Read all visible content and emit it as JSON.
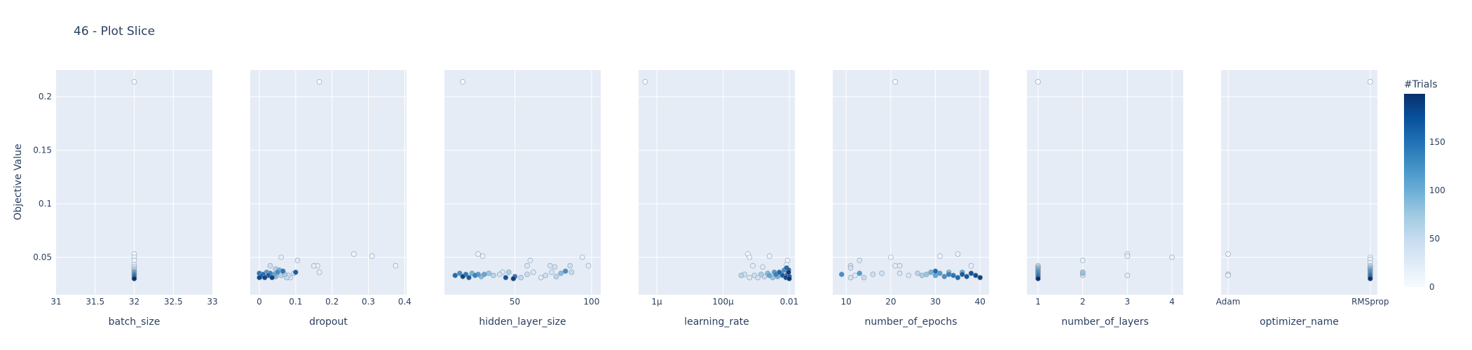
{
  "chart_data": {
    "type": "scatter",
    "title": "46 - Plot Slice",
    "ylabel": "Objective Value",
    "ylim": [
      0.015,
      0.225
    ],
    "yticks": [
      0.05,
      0.1,
      0.15,
      0.2
    ],
    "ytick_labels": [
      "0.05",
      "0.1",
      "0.15",
      "0.2"
    ],
    "colorbar": {
      "title": "#Trials",
      "range": [
        0,
        200
      ],
      "ticks": [
        0,
        50,
        100,
        150
      ],
      "tick_labels": [
        "0",
        "50",
        "100",
        "150"
      ]
    },
    "colorscale": [
      "#f7fbff",
      "#deebf7",
      "#c6dbef",
      "#9ecae1",
      "#6baed6",
      "#4292c6",
      "#2171b5",
      "#08519c",
      "#08306b"
    ],
    "panels": [
      {
        "name": "batch_size",
        "xlabel": "batch_size",
        "scale": "linear",
        "xlim": [
          31,
          33
        ],
        "ticks": [
          31,
          31.5,
          32,
          32.5,
          33
        ],
        "tick_labels": [
          "31",
          "31.5",
          "32",
          "32.5",
          "33"
        ],
        "points": [
          [
            32,
            0.214,
            1
          ],
          [
            32,
            0.053,
            3
          ],
          [
            32,
            0.05,
            5
          ],
          [
            32,
            0.047,
            8
          ],
          [
            32,
            0.043,
            12
          ],
          [
            32,
            0.041,
            30
          ],
          [
            32,
            0.039,
            55
          ],
          [
            32,
            0.037,
            80
          ],
          [
            32,
            0.036,
            100
          ],
          [
            32,
            0.035,
            120
          ],
          [
            32,
            0.034,
            140
          ],
          [
            32,
            0.033,
            160
          ],
          [
            32,
            0.032,
            175
          ],
          [
            32,
            0.031,
            190
          ],
          [
            32,
            0.03,
            199
          ]
        ]
      },
      {
        "name": "dropout",
        "xlabel": "dropout",
        "scale": "linear",
        "xlim": [
          -0.025,
          0.405
        ],
        "ticks": [
          0,
          0.1,
          0.2,
          0.3,
          0.4
        ],
        "tick_labels": [
          "0",
          "0.1",
          "0.2",
          "0.3",
          "0.4"
        ],
        "points": [
          [
            0.165,
            0.214,
            1
          ],
          [
            0.26,
            0.053,
            8
          ],
          [
            0.31,
            0.051,
            10
          ],
          [
            0.375,
            0.042,
            12
          ],
          [
            0.06,
            0.05,
            20
          ],
          [
            0.105,
            0.047,
            25
          ],
          [
            0.16,
            0.042,
            15
          ],
          [
            0.165,
            0.036,
            18
          ],
          [
            0.15,
            0.042,
            22
          ],
          [
            0.0,
            0.035,
            150
          ],
          [
            0.005,
            0.032,
            180
          ],
          [
            0.01,
            0.034,
            160
          ],
          [
            0.015,
            0.031,
            190
          ],
          [
            0.02,
            0.036,
            120
          ],
          [
            0.025,
            0.033,
            170
          ],
          [
            0.03,
            0.035,
            140
          ],
          [
            0.035,
            0.031,
            195
          ],
          [
            0.04,
            0.034,
            110
          ],
          [
            0.045,
            0.032,
            90
          ],
          [
            0.05,
            0.036,
            130
          ],
          [
            0.055,
            0.038,
            100
          ],
          [
            0.06,
            0.033,
            60
          ],
          [
            0.065,
            0.037,
            150
          ],
          [
            0.07,
            0.034,
            70
          ],
          [
            0.075,
            0.031,
            50
          ],
          [
            0.08,
            0.033,
            40
          ],
          [
            0.085,
            0.031,
            30
          ],
          [
            0.095,
            0.035,
            35
          ],
          [
            0.1,
            0.036,
            170
          ],
          [
            0.03,
            0.042,
            45
          ],
          [
            0.045,
            0.039,
            65
          ],
          [
            0.0,
            0.031,
            185
          ]
        ]
      },
      {
        "name": "hidden_layer_size",
        "xlabel": "hidden_layer_size",
        "scale": "linear",
        "xlim": [
          4,
          106
        ],
        "ticks": [
          50,
          100
        ],
        "tick_labels": [
          "50",
          "100"
        ],
        "points": [
          [
            16,
            0.214,
            1
          ],
          [
            26,
            0.053,
            10
          ],
          [
            29,
            0.051,
            12
          ],
          [
            94,
            0.05,
            15
          ],
          [
            98,
            0.042,
            20
          ],
          [
            60,
            0.047,
            25
          ],
          [
            58,
            0.042,
            30
          ],
          [
            73,
            0.042,
            35
          ],
          [
            76,
            0.041,
            40
          ],
          [
            86,
            0.042,
            45
          ],
          [
            11,
            0.033,
            160
          ],
          [
            14,
            0.035,
            130
          ],
          [
            16,
            0.032,
            190
          ],
          [
            18,
            0.034,
            150
          ],
          [
            20,
            0.031,
            170
          ],
          [
            22,
            0.035,
            100
          ],
          [
            24,
            0.033,
            140
          ],
          [
            26,
            0.034,
            120
          ],
          [
            28,
            0.032,
            90
          ],
          [
            30,
            0.034,
            110
          ],
          [
            33,
            0.035,
            80
          ],
          [
            36,
            0.033,
            60
          ],
          [
            40,
            0.034,
            40
          ],
          [
            44,
            0.031,
            180
          ],
          [
            46,
            0.036,
            70
          ],
          [
            49,
            0.03,
            195
          ],
          [
            50,
            0.032,
            150
          ],
          [
            54,
            0.031,
            55
          ],
          [
            58,
            0.034,
            50
          ],
          [
            62,
            0.036,
            30
          ],
          [
            67,
            0.031,
            25
          ],
          [
            70,
            0.033,
            45
          ],
          [
            74,
            0.036,
            35
          ],
          [
            77,
            0.032,
            60
          ],
          [
            80,
            0.035,
            90
          ],
          [
            83,
            0.037,
            130
          ],
          [
            87,
            0.036,
            50
          ],
          [
            42,
            0.036,
            30
          ]
        ]
      },
      {
        "name": "learning_rate",
        "xlabel": "learning_rate",
        "scale": "log",
        "xlim": [
          -6.55,
          -1.83
        ],
        "ticks": [
          -6,
          -4,
          -2
        ],
        "tick_labels": [
          "1μ",
          "100μ",
          "0.01"
        ],
        "points": [
          [
            -6.35,
            0.214,
            1
          ],
          [
            -3.25,
            0.053,
            5
          ],
          [
            -3.2,
            0.05,
            8
          ],
          [
            -2.6,
            0.051,
            10
          ],
          [
            -2.05,
            0.047,
            12
          ],
          [
            -2.08,
            0.043,
            15
          ],
          [
            -3.1,
            0.042,
            20
          ],
          [
            -2.8,
            0.041,
            25
          ],
          [
            -3.45,
            0.033,
            60
          ],
          [
            -3.35,
            0.034,
            40
          ],
          [
            -3.2,
            0.031,
            30
          ],
          [
            -3.05,
            0.033,
            45
          ],
          [
            -2.95,
            0.031,
            35
          ],
          [
            -2.85,
            0.034,
            70
          ],
          [
            -2.75,
            0.032,
            50
          ],
          [
            -2.65,
            0.035,
            90
          ],
          [
            -2.6,
            0.033,
            110
          ],
          [
            -2.5,
            0.031,
            80
          ],
          [
            -2.45,
            0.036,
            120
          ],
          [
            -2.4,
            0.034,
            140
          ],
          [
            -2.35,
            0.032,
            100
          ],
          [
            -2.3,
            0.036,
            160
          ],
          [
            -2.25,
            0.035,
            150
          ],
          [
            -2.2,
            0.033,
            170
          ],
          [
            -2.15,
            0.038,
            130
          ],
          [
            -2.1,
            0.031,
            190
          ],
          [
            -2.05,
            0.034,
            180
          ],
          [
            -2.02,
            0.036,
            195
          ],
          [
            -2.0,
            0.032,
            185
          ],
          [
            -2.0,
            0.03,
            199
          ],
          [
            -2.02,
            0.038,
            175
          ],
          [
            -2.08,
            0.04,
            165
          ]
        ]
      },
      {
        "name": "number_of_epochs",
        "xlabel": "number_of_epochs",
        "scale": "linear",
        "xlim": [
          7,
          42
        ],
        "ticks": [
          10,
          20,
          30,
          40
        ],
        "tick_labels": [
          "10",
          "20",
          "30",
          "40"
        ],
        "points": [
          [
            21,
            0.214,
            1
          ],
          [
            20,
            0.05,
            5
          ],
          [
            31,
            0.051,
            10
          ],
          [
            35,
            0.053,
            12
          ],
          [
            38,
            0.042,
            15
          ],
          [
            21,
            0.042,
            20
          ],
          [
            22,
            0.042,
            25
          ],
          [
            13,
            0.047,
            30
          ],
          [
            11,
            0.042,
            35
          ],
          [
            11,
            0.04,
            40
          ],
          [
            9,
            0.034,
            130
          ],
          [
            11,
            0.031,
            40
          ],
          [
            13,
            0.035,
            120
          ],
          [
            14,
            0.031,
            50
          ],
          [
            16,
            0.034,
            45
          ],
          [
            18,
            0.035,
            40
          ],
          [
            22,
            0.035,
            35
          ],
          [
            24,
            0.033,
            30
          ],
          [
            26,
            0.035,
            60
          ],
          [
            27,
            0.033,
            70
          ],
          [
            28,
            0.034,
            80
          ],
          [
            29,
            0.036,
            100
          ],
          [
            30,
            0.033,
            110
          ],
          [
            31,
            0.035,
            120
          ],
          [
            32,
            0.032,
            130
          ],
          [
            33,
            0.034,
            140
          ],
          [
            34,
            0.033,
            150
          ],
          [
            35,
            0.031,
            160
          ],
          [
            36,
            0.034,
            170
          ],
          [
            37,
            0.032,
            175
          ],
          [
            38,
            0.035,
            180
          ],
          [
            39,
            0.033,
            185
          ],
          [
            40,
            0.031,
            195
          ],
          [
            33,
            0.036,
            90
          ],
          [
            36,
            0.036,
            110
          ],
          [
            12,
            0.033,
            25
          ],
          [
            30,
            0.037,
            160
          ]
        ]
      },
      {
        "name": "number_of_layers",
        "xlabel": "number_of_layers",
        "scale": "linear",
        "xlim": [
          0.75,
          4.25
        ],
        "ticks": [
          1,
          2,
          3,
          4
        ],
        "tick_labels": [
          "1",
          "2",
          "3",
          "4"
        ],
        "points": [
          [
            1,
            0.214,
            1
          ],
          [
            1,
            0.042,
            20
          ],
          [
            1,
            0.041,
            50
          ],
          [
            1,
            0.04,
            70
          ],
          [
            1,
            0.039,
            90
          ],
          [
            1,
            0.038,
            100
          ],
          [
            1,
            0.037,
            120
          ],
          [
            1,
            0.036,
            130
          ],
          [
            1,
            0.035,
            140
          ],
          [
            1,
            0.034,
            150
          ],
          [
            1,
            0.033,
            160
          ],
          [
            1,
            0.032,
            175
          ],
          [
            1,
            0.031,
            185
          ],
          [
            1,
            0.03,
            199
          ],
          [
            2,
            0.047,
            15
          ],
          [
            2,
            0.036,
            80
          ],
          [
            2,
            0.035,
            70
          ],
          [
            2,
            0.033,
            30
          ],
          [
            3,
            0.053,
            10
          ],
          [
            3,
            0.051,
            12
          ],
          [
            3,
            0.033,
            20
          ],
          [
            4,
            0.05,
            15
          ]
        ]
      },
      {
        "name": "optimizer_name",
        "xlabel": "optimizer_name",
        "scale": "category",
        "xlim": [
          -0.05,
          1.05
        ],
        "ticks": [
          0,
          1
        ],
        "tick_labels": [
          "Adam",
          "RMSprop"
        ],
        "points": [
          [
            0,
            0.053,
            5
          ],
          [
            0,
            0.034,
            10
          ],
          [
            0,
            0.033,
            12
          ],
          [
            1,
            0.214,
            1
          ],
          [
            1,
            0.05,
            8
          ],
          [
            1,
            0.048,
            10
          ],
          [
            1,
            0.045,
            15
          ],
          [
            1,
            0.042,
            25
          ],
          [
            1,
            0.041,
            40
          ],
          [
            1,
            0.04,
            60
          ],
          [
            1,
            0.039,
            80
          ],
          [
            1,
            0.038,
            100
          ],
          [
            1,
            0.037,
            120
          ],
          [
            1,
            0.036,
            130
          ],
          [
            1,
            0.035,
            140
          ],
          [
            1,
            0.034,
            150
          ],
          [
            1,
            0.033,
            165
          ],
          [
            1,
            0.032,
            180
          ],
          [
            1,
            0.031,
            190
          ],
          [
            1,
            0.03,
            199
          ]
        ]
      }
    ]
  }
}
